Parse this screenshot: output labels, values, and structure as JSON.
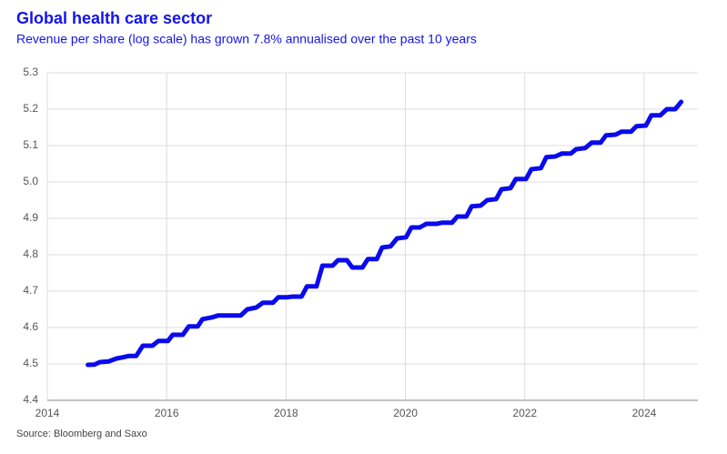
{
  "chart_data": {
    "type": "line",
    "title": "Global health care sector",
    "subtitle": "Revenue per share (log scale) has grown 7.8% annualised over the past 10 years",
    "source": "Source: Bloomberg and Saxo",
    "x": [
      2014.68,
      2014.79,
      2014.88,
      2015.03,
      2015.16,
      2015.26,
      2015.37,
      2015.49,
      2015.6,
      2015.76,
      2015.86,
      2016.02,
      2016.1,
      2016.27,
      2016.37,
      2016.52,
      2016.6,
      2016.76,
      2016.86,
      2017.24,
      2017.35,
      2017.5,
      2017.61,
      2017.78,
      2017.87,
      2018.0,
      2018.11,
      2018.26,
      2018.35,
      2018.51,
      2018.61,
      2018.78,
      2018.87,
      2019.02,
      2019.11,
      2019.28,
      2019.37,
      2019.52,
      2019.61,
      2019.75,
      2019.86,
      2020.01,
      2020.1,
      2020.24,
      2020.35,
      2020.52,
      2020.61,
      2020.78,
      2020.87,
      2021.02,
      2021.11,
      2021.26,
      2021.37,
      2021.52,
      2021.61,
      2021.76,
      2021.85,
      2022.02,
      2022.11,
      2022.27,
      2022.36,
      2022.51,
      2022.62,
      2022.77,
      2022.86,
      2023.01,
      2023.12,
      2023.27,
      2023.36,
      2023.52,
      2023.62,
      2023.78,
      2023.87,
      2024.03,
      2024.12,
      2024.27,
      2024.38,
      2024.52,
      2024.62
    ],
    "series": [
      {
        "color": "#0a0aee",
        "values": [
          4.4975,
          4.498,
          4.505,
          4.507,
          4.515,
          4.518,
          4.522,
          4.522,
          4.55,
          4.55,
          4.563,
          4.563,
          4.58,
          4.58,
          4.603,
          4.603,
          4.623,
          4.628,
          4.633,
          4.633,
          4.65,
          4.655,
          4.668,
          4.668,
          4.683,
          4.683,
          4.685,
          4.685,
          4.713,
          4.713,
          4.77,
          4.77,
          4.785,
          4.785,
          4.765,
          4.765,
          4.788,
          4.788,
          4.82,
          4.823,
          4.845,
          4.848,
          4.875,
          4.875,
          4.885,
          4.885,
          4.888,
          4.888,
          4.905,
          4.905,
          4.933,
          4.935,
          4.95,
          4.953,
          4.98,
          4.983,
          5.008,
          5.008,
          5.035,
          5.038,
          5.068,
          5.07,
          5.078,
          5.078,
          5.09,
          5.093,
          5.108,
          5.108,
          5.128,
          5.13,
          5.138,
          5.138,
          5.153,
          5.155,
          5.183,
          5.183,
          5.2,
          5.2,
          5.22
        ]
      }
    ],
    "xlim": [
      2014,
      2024.9
    ],
    "xticks": [
      2014,
      2016,
      2018,
      2020,
      2022,
      2024
    ],
    "ylim": [
      4.4,
      5.3
    ],
    "yticks": [
      4.4,
      4.5,
      4.6,
      4.7,
      4.8,
      4.9,
      {
        "value": 5,
        "label": "5.0"
      },
      5.1,
      5.2,
      5.3
    ],
    "grid": true
  }
}
